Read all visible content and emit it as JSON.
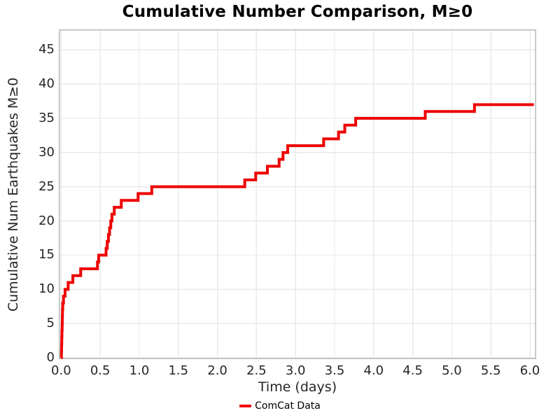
{
  "title": "Cumulative Number Comparison, M≥0",
  "chart_data": {
    "type": "line",
    "subtype": "cumulative-step",
    "title": "Cumulative Number Comparison, M≥0",
    "xlabel": "Time (days)",
    "ylabel": "Cumulative Num Earthquakes M≥0",
    "xlim": [
      -0.03,
      6.08
    ],
    "ylim": [
      -0.2,
      48
    ],
    "xticks": [
      "0.0",
      "0.5",
      "1.0",
      "1.5",
      "2.0",
      "2.5",
      "3.0",
      "3.5",
      "4.0",
      "4.5",
      "5.0",
      "5.5",
      "6.0"
    ],
    "yticks": [
      "0",
      "5",
      "10",
      "15",
      "20",
      "25",
      "30",
      "35",
      "40",
      "45"
    ],
    "grid": true,
    "legend": {
      "position": "bottom-center",
      "entries": [
        {
          "label": "ComCat Data",
          "color": "#EE0000"
        }
      ]
    },
    "series": [
      {
        "name": "ComCat Data",
        "color": "#EE0000",
        "points": [
          [
            0.0,
            0
          ],
          [
            0.004,
            1
          ],
          [
            0.006,
            2
          ],
          [
            0.008,
            3
          ],
          [
            0.01,
            4
          ],
          [
            0.013,
            5
          ],
          [
            0.015,
            6
          ],
          [
            0.017,
            7
          ],
          [
            0.02,
            8
          ],
          [
            0.03,
            9
          ],
          [
            0.05,
            10
          ],
          [
            0.09,
            11
          ],
          [
            0.15,
            12
          ],
          [
            0.25,
            13
          ],
          [
            0.465,
            14
          ],
          [
            0.48,
            15
          ],
          [
            0.575,
            16
          ],
          [
            0.59,
            17
          ],
          [
            0.605,
            18
          ],
          [
            0.62,
            19
          ],
          [
            0.635,
            20
          ],
          [
            0.65,
            21
          ],
          [
            0.68,
            22
          ],
          [
            0.77,
            23
          ],
          [
            0.985,
            24
          ],
          [
            1.16,
            25
          ],
          [
            2.35,
            26
          ],
          [
            2.49,
            27
          ],
          [
            2.64,
            28
          ],
          [
            2.79,
            29
          ],
          [
            2.84,
            30
          ],
          [
            2.9,
            31
          ],
          [
            3.36,
            32
          ],
          [
            3.55,
            33
          ],
          [
            3.63,
            34
          ],
          [
            3.77,
            35
          ],
          [
            4.66,
            36
          ],
          [
            5.29,
            37
          ],
          [
            6.05,
            37
          ]
        ]
      }
    ],
    "colors": {
      "series": "#EE0000",
      "grid": "#EAEAEA",
      "frame": "#B8B8B8",
      "text": "#262626"
    }
  }
}
